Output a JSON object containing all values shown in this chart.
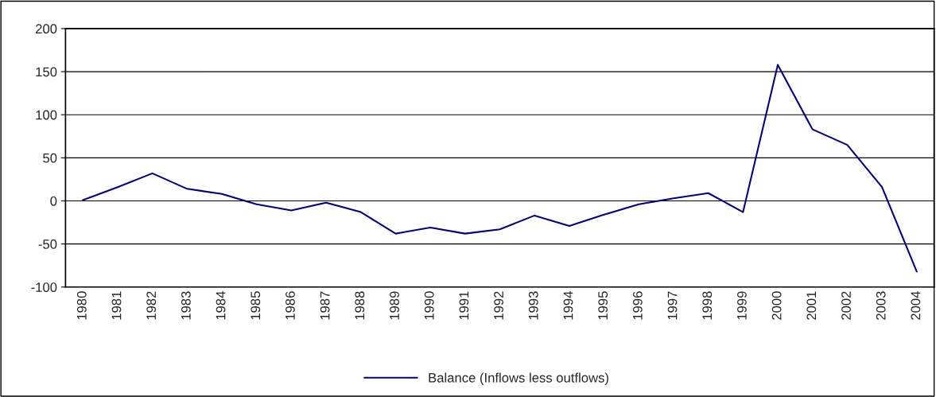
{
  "chart_data": {
    "type": "line",
    "categories": [
      "1980",
      "1981",
      "1982",
      "1983",
      "1984",
      "1985",
      "1986",
      "1987",
      "1988",
      "1989",
      "1990",
      "1991",
      "1992",
      "1993",
      "1994",
      "1995",
      "1996",
      "1997",
      "1998",
      "1999",
      "2000",
      "2001",
      "2002",
      "2003",
      "2004"
    ],
    "series": [
      {
        "name": "Balance (Inflows less outflows)",
        "color": "#000080",
        "values": [
          1,
          16,
          32,
          14,
          8,
          -4,
          -11,
          -2,
          -13,
          -38,
          -31,
          -38,
          -33,
          -17,
          -29,
          -16,
          -4,
          3,
          9,
          -13,
          158,
          83,
          65,
          16,
          -82
        ]
      }
    ],
    "ylim": [
      -100,
      200
    ],
    "yticks": [
      -100,
      -50,
      0,
      50,
      100,
      150,
      200
    ],
    "grid": "y",
    "legend": "bottom",
    "marker": "none",
    "line_style": "solid"
  }
}
